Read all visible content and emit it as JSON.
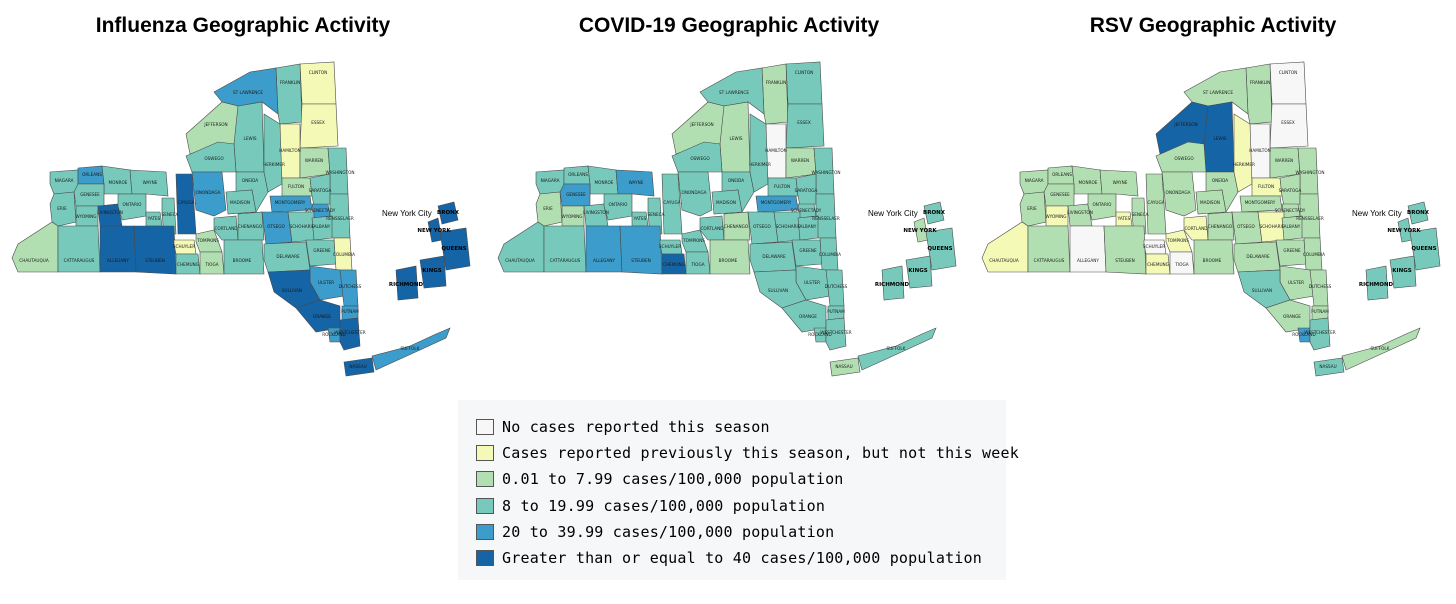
{
  "colors": {
    "none": "#f7f7f7",
    "previous": "#f4f9b6",
    "low": "#b2dfb1",
    "moderate": "#77cabb",
    "high": "#3c9ccb",
    "very_high": "#1464a6"
  },
  "legend": {
    "items": [
      {
        "label": "No cases reported this season",
        "color_key": "none"
      },
      {
        "label": "Cases reported previously this season, but not this week",
        "color_key": "previous"
      },
      {
        "label": "0.01 to 7.99 cases/100,000 population",
        "color_key": "low"
      },
      {
        "label": "8 to 19.99 cases/100,000 population",
        "color_key": "moderate"
      },
      {
        "label": "20 to 39.99 cases/100,000 population",
        "color_key": "high"
      },
      {
        "label": "Greater than or equal to 40 cases/100,000 population",
        "color_key": "very_high"
      }
    ]
  },
  "maps": [
    {
      "title": "Influenza Geographic Activity",
      "nyc_label": "New York City",
      "counties": {
        "CLINTON": "previous",
        "FRANKLIN": "moderate",
        "ST LAWRENCE": "high",
        "ESSEX": "previous",
        "JEFFERSON": "low",
        "LEWIS": "moderate",
        "HAMILTON": "previous",
        "WARREN": "low",
        "WASHINGTON": "moderate",
        "NIAGARA": "moderate",
        "ORLEANS": "high",
        "MONROE": "moderate",
        "WAYNE": "moderate",
        "OSWEGO": "moderate",
        "ONEIDA": "moderate",
        "HERKIMER": "moderate",
        "FULTON": "low",
        "SARATOGA": "moderate",
        "GENESEE": "moderate",
        "ONONDAGA": "high",
        "MADISON": "moderate",
        "MONTGOMERY": "high",
        "SCHENECTADY": "high",
        "RENSSELAER": "moderate",
        "ERIE": "moderate",
        "WYOMING": "moderate",
        "LIVINGSTON": "very_high",
        "ONTARIO": "moderate",
        "YATES": "moderate",
        "SENECA": "moderate",
        "CAYUGA": "very_high",
        "CORTLAND": "moderate",
        "CHENANGO": "moderate",
        "OTSEGO": "high",
        "SCHOHARIE": "moderate",
        "ALBANY": "moderate",
        "CHAUTAUQUA": "low",
        "CATTARAUGUS": "moderate",
        "ALLEGANY": "very_high",
        "STEUBEN": "very_high",
        "SCHUYLER": "previous",
        "CHEMUNG": "moderate",
        "TOMPKINS": "low",
        "TIOGA": "low",
        "BROOME": "moderate",
        "DELAWARE": "moderate",
        "GREENE": "moderate",
        "COLUMBIA": "previous",
        "ULSTER": "high",
        "SULLIVAN": "very_high",
        "DUTCHESS": "high",
        "ORANGE": "very_high",
        "PUTNAM": "high",
        "ROCKLAND": "high",
        "WESTCHESTER": "very_high",
        "NASSAU": "very_high",
        "SUFFOLK": "high",
        "BRONX": "very_high",
        "NEW YORK": "very_high",
        "QUEENS": "very_high",
        "KINGS": "very_high",
        "RICHMOND": "very_high"
      }
    },
    {
      "title": "COVID-19 Geographic Activity",
      "nyc_label": "New York City",
      "counties": {
        "CLINTON": "moderate",
        "FRANKLIN": "low",
        "ST LAWRENCE": "moderate",
        "ESSEX": "moderate",
        "JEFFERSON": "low",
        "LEWIS": "low",
        "HAMILTON": "none",
        "WARREN": "low",
        "WASHINGTON": "moderate",
        "NIAGARA": "moderate",
        "ORLEANS": "moderate",
        "MONROE": "moderate",
        "WAYNE": "high",
        "OSWEGO": "moderate",
        "ONEIDA": "moderate",
        "HERKIMER": "moderate",
        "FULTON": "moderate",
        "SARATOGA": "moderate",
        "GENESEE": "high",
        "ONONDAGA": "moderate",
        "MADISON": "moderate",
        "MONTGOMERY": "high",
        "SCHENECTADY": "moderate",
        "RENSSELAER": "moderate",
        "ERIE": "low",
        "WYOMING": "low",
        "LIVINGSTON": "moderate",
        "ONTARIO": "moderate",
        "YATES": "moderate",
        "SENECA": "moderate",
        "CAYUGA": "moderate",
        "CORTLAND": "moderate",
        "CHENANGO": "low",
        "OTSEGO": "moderate",
        "SCHOHARIE": "moderate",
        "ALBANY": "moderate",
        "CHAUTAUQUA": "moderate",
        "CATTARAUGUS": "moderate",
        "ALLEGANY": "high",
        "STEUBEN": "high",
        "SCHUYLER": "moderate",
        "CHEMUNG": "very_high",
        "TOMPKINS": "moderate",
        "TIOGA": "moderate",
        "BROOME": "low",
        "DELAWARE": "moderate",
        "GREENE": "moderate",
        "COLUMBIA": "moderate",
        "ULSTER": "moderate",
        "SULLIVAN": "moderate",
        "DUTCHESS": "moderate",
        "ORANGE": "moderate",
        "PUTNAM": "moderate",
        "ROCKLAND": "moderate",
        "WESTCHESTER": "moderate",
        "NASSAU": "low",
        "SUFFOLK": "moderate",
        "BRONX": "moderate",
        "NEW YORK": "low",
        "QUEENS": "moderate",
        "KINGS": "moderate",
        "RICHMOND": "moderate"
      }
    },
    {
      "title": "RSV Geographic Activity",
      "nyc_label": "New York City",
      "counties": {
        "CLINTON": "none",
        "FRANKLIN": "low",
        "ST LAWRENCE": "low",
        "ESSEX": "none",
        "JEFFERSON": "very_high",
        "LEWIS": "very_high",
        "HAMILTON": "none",
        "WARREN": "low",
        "WASHINGTON": "low",
        "NIAGARA": "low",
        "ORLEANS": "low",
        "MONROE": "low",
        "WAYNE": "low",
        "OSWEGO": "low",
        "ONEIDA": "low",
        "HERKIMER": "previous",
        "FULTON": "previous",
        "SARATOGA": "low",
        "GENESEE": "low",
        "ONONDAGA": "low",
        "MADISON": "low",
        "MONTGOMERY": "low",
        "SCHENECTADY": "low",
        "RENSSELAER": "low",
        "ERIE": "low",
        "WYOMING": "previous",
        "LIVINGSTON": "low",
        "ONTARIO": "low",
        "YATES": "previous",
        "SENECA": "low",
        "CAYUGA": "low",
        "CORTLAND": "previous",
        "CHENANGO": "low",
        "OTSEGO": "low",
        "SCHOHARIE": "previous",
        "ALBANY": "low",
        "CHAUTAUQUA": "previous",
        "CATTARAUGUS": "low",
        "ALLEGANY": "none",
        "STEUBEN": "low",
        "SCHUYLER": "none",
        "CHEMUNG": "previous",
        "TOMPKINS": "previous",
        "TIOGA": "none",
        "BROOME": "low",
        "DELAWARE": "low",
        "GREENE": "low",
        "COLUMBIA": "low",
        "ULSTER": "low",
        "SULLIVAN": "moderate",
        "DUTCHESS": "low",
        "ORANGE": "low",
        "PUTNAM": "low",
        "ROCKLAND": "high",
        "WESTCHESTER": "moderate",
        "NASSAU": "moderate",
        "SUFFOLK": "low",
        "BRONX": "moderate",
        "NEW YORK": "moderate",
        "QUEENS": "moderate",
        "KINGS": "moderate",
        "RICHMOND": "moderate"
      }
    }
  ]
}
